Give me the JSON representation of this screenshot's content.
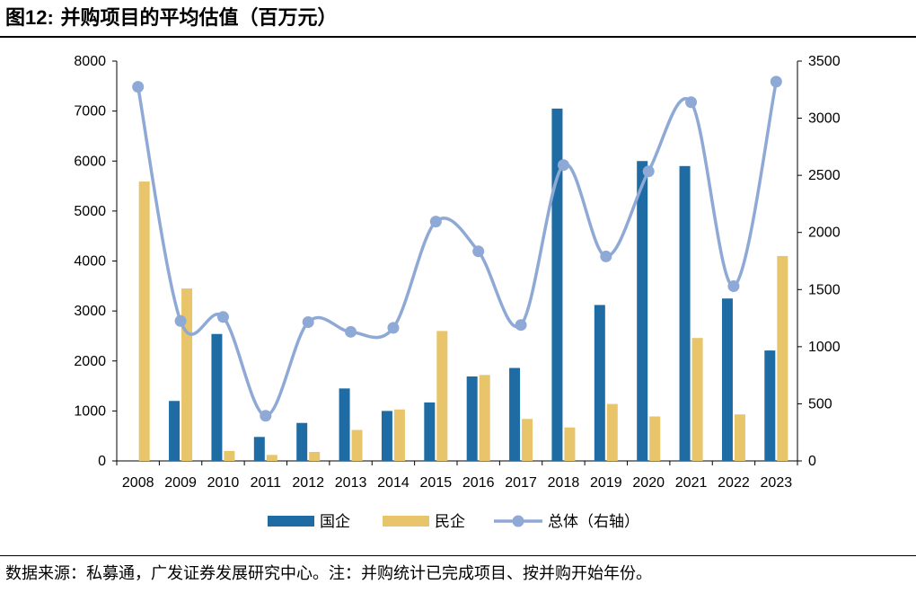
{
  "header": {
    "title_prefix": "图",
    "title_number": "12:",
    "title_text": "并购项目的平均估值（百万元）"
  },
  "footer": {
    "source": "数据来源：私募通，广发证券发展研究中心。注：并购统计已完成项目、按并购开始年份。"
  },
  "chart_data": {
    "type": "bar",
    "title": "",
    "categories": [
      "2008",
      "2009",
      "2010",
      "2011",
      "2012",
      "2013",
      "2014",
      "2015",
      "2016",
      "2017",
      "2018",
      "2019",
      "2020",
      "2021",
      "2022",
      "2023"
    ],
    "left_axis": {
      "ylim": [
        0,
        8000
      ],
      "ticks": [
        "0",
        "1000",
        "2000",
        "3000",
        "4000",
        "5000",
        "6000",
        "7000",
        "8000"
      ]
    },
    "right_axis": {
      "ylim": [
        0,
        3500
      ],
      "ticks": [
        "0",
        "500",
        "1000",
        "1500",
        "2000",
        "2500",
        "3000",
        "3500"
      ]
    },
    "series": [
      {
        "name": "国企",
        "type": "bar",
        "axis": "left",
        "color": "#1f6ca5",
        "values": [
          0,
          1200,
          2540,
          480,
          760,
          1450,
          1000,
          1170,
          1690,
          1860,
          7050,
          3120,
          6000,
          5900,
          3250,
          2210
        ]
      },
      {
        "name": "民企",
        "type": "bar",
        "axis": "left",
        "color": "#e8c56a",
        "values": [
          5590,
          3450,
          200,
          120,
          180,
          620,
          1030,
          2600,
          1720,
          840,
          670,
          1140,
          890,
          2460,
          930,
          4100
        ]
      },
      {
        "name": "总体（右轴）",
        "type": "line",
        "axis": "right",
        "color": "#8fa9d6",
        "smooth": true,
        "values": [
          3275,
          1225,
          1260,
          395,
          1215,
          1130,
          1165,
          2095,
          1835,
          1190,
          2590,
          1790,
          2535,
          3140,
          1530,
          3320
        ]
      }
    ],
    "grid": false,
    "legend": "bottom-center"
  }
}
